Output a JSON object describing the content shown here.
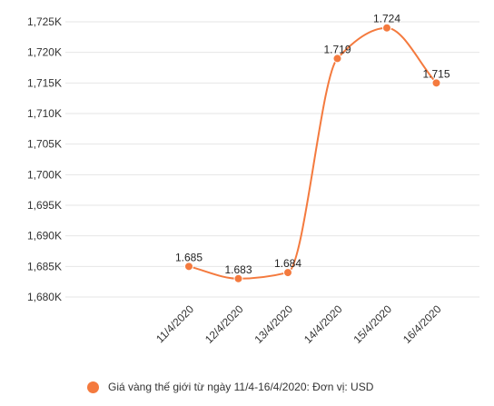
{
  "chart_data": {
    "type": "line",
    "categories": [
      "11/4/2020",
      "12/4/2020",
      "13/4/2020",
      "14/4/2020",
      "15/4/2020",
      "16/4/2020"
    ],
    "series": [
      {
        "name": "Giá vàng thế giới từ ngày 11/4-16/4/2020: Đơn vị: USD",
        "values": [
          1685,
          1683,
          1684,
          1719,
          1724,
          1715
        ],
        "data_labels": [
          "1.685",
          "1.683",
          "1.684",
          "1.719",
          "1.724",
          "1.715"
        ]
      }
    ],
    "ylim": [
      1680,
      1725
    ],
    "y_ticks": [
      1680,
      1685,
      1690,
      1695,
      1700,
      1705,
      1710,
      1715,
      1720,
      1725
    ],
    "y_tick_labels": [
      "1,680K",
      "1,685K",
      "1,690K",
      "1,695K",
      "1,700K",
      "1,705K",
      "1,710K",
      "1,715K",
      "1,720K",
      "1,725K"
    ],
    "title": "",
    "xlabel": "",
    "ylabel": "",
    "grid": true,
    "legend_position": "bottom",
    "line_color": "#F47A3E",
    "grid_color": "#E6E6E6"
  }
}
